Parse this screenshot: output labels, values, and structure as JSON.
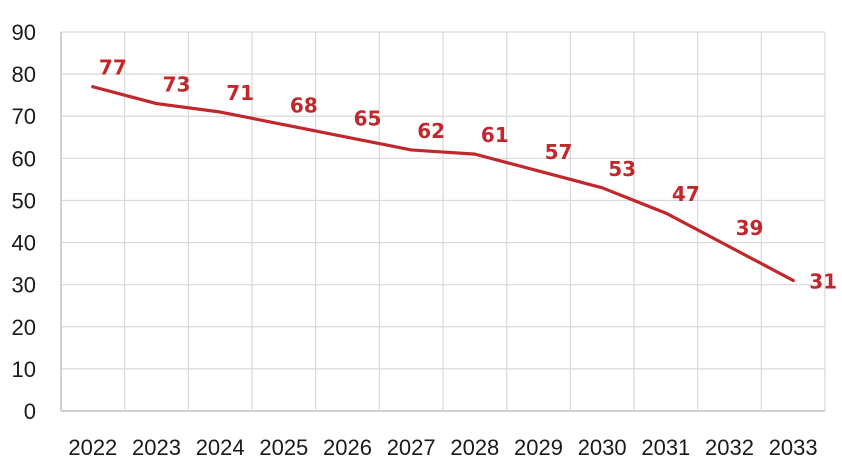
{
  "chart_data": {
    "type": "line",
    "title": "",
    "xlabel": "",
    "ylabel": "",
    "categories": [
      "2022",
      "2023",
      "2024",
      "2025",
      "2026",
      "2027",
      "2028",
      "2029",
      "2030",
      "2031",
      "2032",
      "2033"
    ],
    "series": [
      {
        "values": [
          77,
          73,
          71,
          68,
          65,
          62,
          61,
          57,
          53,
          47,
          39,
          31
        ],
        "color": "#c0282d"
      }
    ],
    "ylim": [
      0,
      90
    ],
    "yticks": [
      "0",
      "10",
      "20",
      "30",
      "40",
      "50",
      "60",
      "70",
      "80",
      "90"
    ],
    "data_labels": [
      "77",
      "73",
      "71",
      "68",
      "65",
      "62",
      "61",
      "57",
      "53",
      "47",
      "39",
      "31"
    ],
    "grid": true,
    "legend": "none"
  }
}
